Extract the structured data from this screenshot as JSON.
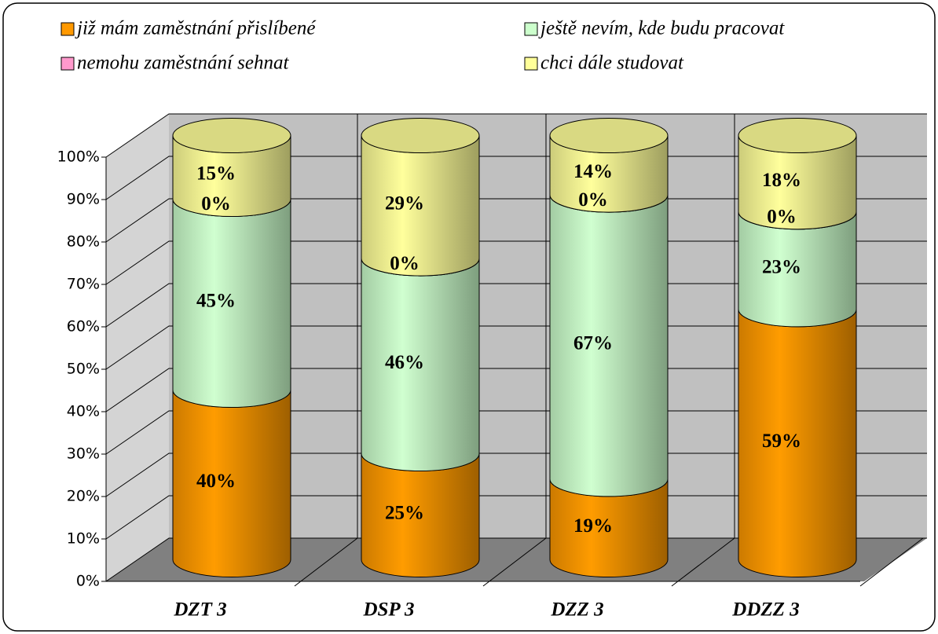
{
  "chart_data": {
    "type": "bar3d_cylinder_stacked",
    "categories": [
      "DZT 3",
      "DSP 3",
      "DZZ 3",
      "DDZZ 3"
    ],
    "series": [
      {
        "name": "již mám zaměstnání přislíbené",
        "color": "#ff9900",
        "values": [
          40,
          25,
          19,
          59
        ],
        "value_labels": [
          "40%",
          "25%",
          "19%",
          "59%"
        ]
      },
      {
        "name": "ještě nevím, kde budu pracovat",
        "color": "#ccffcc",
        "values": [
          45,
          46,
          67,
          23
        ],
        "value_labels": [
          "45%",
          "46%",
          "67%",
          "23%"
        ]
      },
      {
        "name": "nemohu zaměstnání sehnat",
        "color": "#ff99cc",
        "values": [
          0,
          0,
          0,
          0
        ],
        "value_labels": [
          "0%",
          "0%",
          "0%",
          "0%"
        ]
      },
      {
        "name": "chci dále studovat",
        "color": "#ffff99",
        "values": [
          15,
          29,
          14,
          18
        ],
        "value_labels": [
          "15%",
          "29%",
          "14%",
          "18%"
        ]
      }
    ],
    "ylim": [
      0,
      100
    ],
    "yticks": [
      {
        "value": 0,
        "label": "0%"
      },
      {
        "value": 10,
        "label": "10%"
      },
      {
        "value": 20,
        "label": "20%"
      },
      {
        "value": 30,
        "label": "30%"
      },
      {
        "value": 40,
        "label": "40%"
      },
      {
        "value": 50,
        "label": "50%"
      },
      {
        "value": 60,
        "label": "60%"
      },
      {
        "value": 70,
        "label": "70%"
      },
      {
        "value": 80,
        "label": "80%"
      },
      {
        "value": 90,
        "label": "90%"
      },
      {
        "value": 100,
        "label": "100%"
      }
    ],
    "grid": true,
    "legend": "top"
  }
}
